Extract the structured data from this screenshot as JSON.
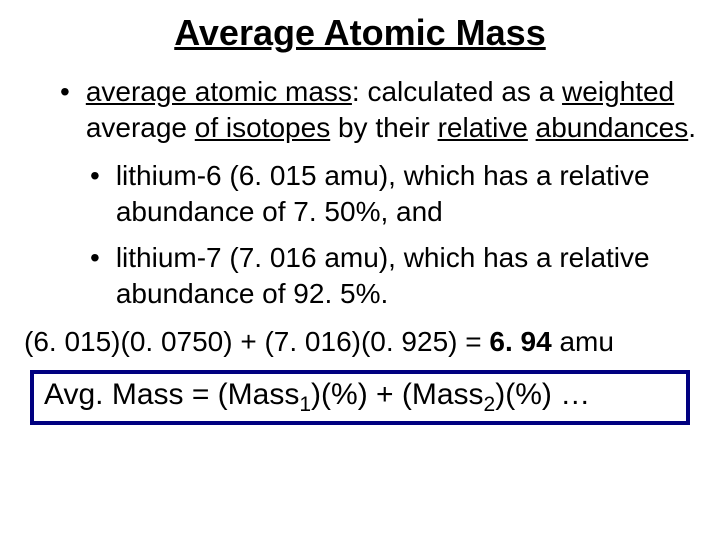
{
  "title": "Average Atomic Mass",
  "bullet1": {
    "part1": "average atomic mass",
    "colon": ":  calculated as a ",
    "part2": "weighted",
    "part3": " average ",
    "part4": "of isotopes",
    "part5": " by their ",
    "part6": "relative",
    "space": " ",
    "part7": "abundances",
    "period": "."
  },
  "bullet2": "lithium-6 (6. 015 amu), which has a relative abundance of 7. 50%, and",
  "bullet3": "lithium-7 (7. 016 amu), which has a relative abundance of 92. 5%.",
  "equation": {
    "left": "(6. 015)(0. 0750) + (7. 016)(0. 925) = ",
    "result": "6. 94",
    "unit": " amu"
  },
  "formula": {
    "pre": "Avg. Mass = (Mass",
    "sub1": "1",
    "mid": ")(%) + (Mass",
    "sub2": "2",
    "post": ")(%) …"
  },
  "colors": {
    "text": "#000000",
    "box_border": "#000080",
    "background": "#ffffff"
  },
  "fonts": {
    "title_size": 36,
    "body_size": 28,
    "formula_size": 30
  }
}
